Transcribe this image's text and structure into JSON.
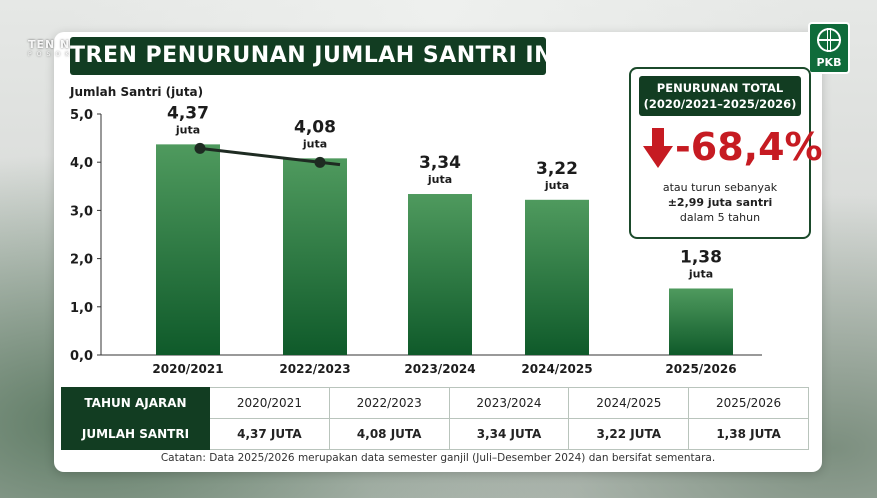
{
  "overlay": {
    "brand_line1": "TEN NASIONAL",
    "brand_line2": "P O S  O K  S A N T R I"
  },
  "logo": {
    "text": "PKB",
    "icon": "globe-icon"
  },
  "title": "TREN PENURUNAN JUMLAH SANTRI INDONESIA",
  "summary": {
    "heading_line1": "PENURUNAN TOTAL",
    "heading_line2": "(2020/2021–2025/2026)",
    "icon": "arrow-down-icon",
    "value": "-68,4%",
    "line1": "atau turun sebanyak",
    "line2": "±2,99 juta santri",
    "line3": "dalam 5 tahun"
  },
  "table": {
    "row1_header": "TAHUN AJARAN",
    "row2_header": "JUMLAH SANTRI",
    "years": [
      "2020/2021",
      "2022/2023",
      "2023/2024",
      "2024/2025",
      "2025/2026"
    ],
    "values": [
      "4,37 JUTA",
      "4,08 JUTA",
      "3,34 JUTA",
      "3,22 JUTA",
      "1,38 JUTA"
    ]
  },
  "footnote": "Catatan: Data 2025/2026 merupakan data semester ganjil (Juli–Desember 2024) dan bersifat sementara.",
  "chart_data": {
    "type": "bar",
    "ylabel": "Jumlah Santri (juta)",
    "categories": [
      "2020/2021",
      "2022/2023",
      "2023/2024",
      "2024/2025",
      "2025/2026"
    ],
    "values": [
      4.37,
      4.08,
      3.34,
      3.22,
      1.38
    ],
    "value_labels": [
      "4,37",
      "4,08",
      "3,34",
      "3,22",
      "1,38"
    ],
    "unit_label": "juta",
    "ylim": [
      0,
      5
    ],
    "yticks": [
      0,
      1,
      2,
      3,
      4,
      5
    ],
    "ytick_labels": [
      "0,0",
      "1,0",
      "2,0",
      "3,0",
      "4,0",
      "5,0"
    ],
    "trend_line_between": [
      0,
      1
    ],
    "grid": false,
    "colors": {
      "bar_top": "#4f9a5e",
      "bar_bottom": "#0f5a2a",
      "text": "#1c1c1c",
      "accent": "#123d22",
      "decline": "#c61b22"
    }
  }
}
